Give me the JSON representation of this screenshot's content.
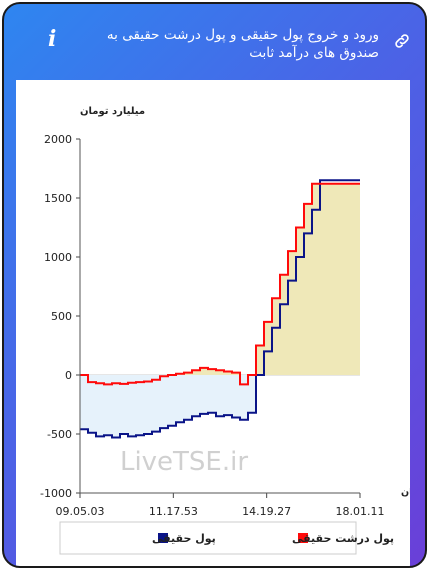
{
  "header": {
    "title": "ورود و خروج پول حقیقی و پول درشت حقیقی به صندوق های درآمد ثابت",
    "info_icon": "info-icon",
    "link_icon": "link-icon"
  },
  "colors": {
    "real_money": "#0a1488",
    "large_real_money": "#ff0a0a",
    "positive_fill": "#efe8b8",
    "negative_fill": "#e6f2fb"
  },
  "chart_data": {
    "type": "line",
    "ylabel": "میلیارد تومان",
    "xlabel": "زمان",
    "ylim": [
      -1000,
      2000
    ],
    "yticks": [
      2000,
      1500,
      1000,
      500,
      0,
      -500,
      -1000
    ],
    "xticks": [
      "09.05.03",
      "11.17.53",
      "14.19.27",
      "18.01.11"
    ],
    "watermark": "LiveTSE.ir",
    "series": [
      {
        "name": "پول حقیقی",
        "color": "#0a1488",
        "values": [
          -460,
          -490,
          -520,
          -510,
          -530,
          -500,
          -520,
          -510,
          -500,
          -480,
          -450,
          -430,
          -400,
          -380,
          -350,
          -330,
          -320,
          -350,
          -340,
          -360,
          -380,
          -320,
          0,
          200,
          400,
          600,
          800,
          1000,
          1200,
          1400,
          1650,
          1650,
          1650,
          1650,
          1650,
          1650
        ]
      },
      {
        "name": "پول درشت حقیقی",
        "color": "#ff0a0a",
        "values": [
          0,
          -60,
          -70,
          -80,
          -70,
          -75,
          -65,
          -60,
          -55,
          -40,
          -10,
          0,
          10,
          20,
          40,
          60,
          50,
          40,
          30,
          20,
          -80,
          0,
          250,
          450,
          650,
          850,
          1050,
          1250,
          1450,
          1620,
          1620,
          1620,
          1620,
          1620,
          1620,
          1620
        ]
      }
    ],
    "legend": [
      "پول حقیقی",
      "پول درشت حقیقی"
    ],
    "legend_position": "bottom"
  }
}
